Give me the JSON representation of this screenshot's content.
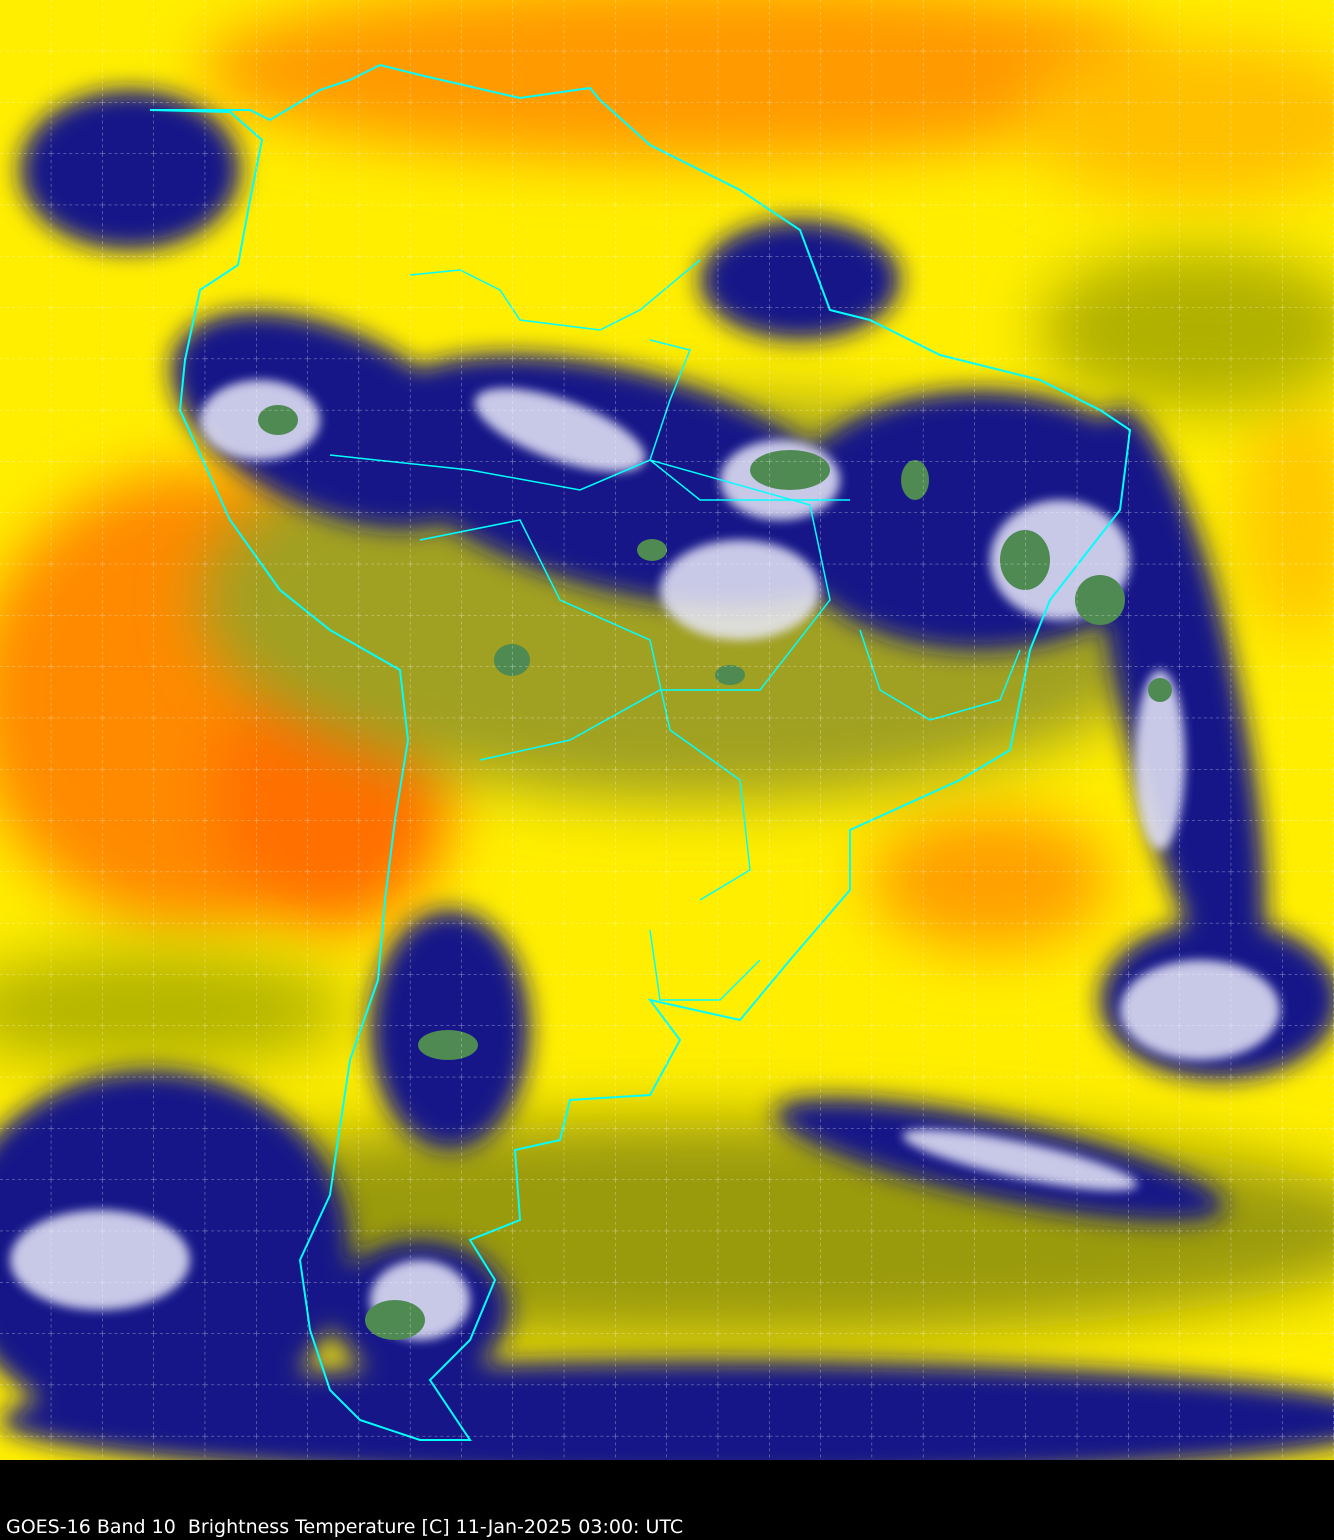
{
  "caption": {
    "satellite": "GOES-16",
    "product": "Band 10  Brightness Temperature [C]",
    "datetime": "11-Jan-2025 03:00: UTC",
    "full_text": "GOES-16 Band 10  Brightness Temperature [C] 11-Jan-2025 03:00: UTC"
  },
  "map": {
    "region": "South America",
    "overlay": "country and state borders",
    "border_color": "#00ffff",
    "grid": true,
    "grid_style": "dashed white",
    "palette": {
      "warm_dry": "#ff8c00",
      "mid": "#ffff00",
      "moist": "#a8a800",
      "cold_cloud": "#10107a",
      "very_cold": "#ffffff",
      "coldest": "#4a8a4a"
    }
  }
}
